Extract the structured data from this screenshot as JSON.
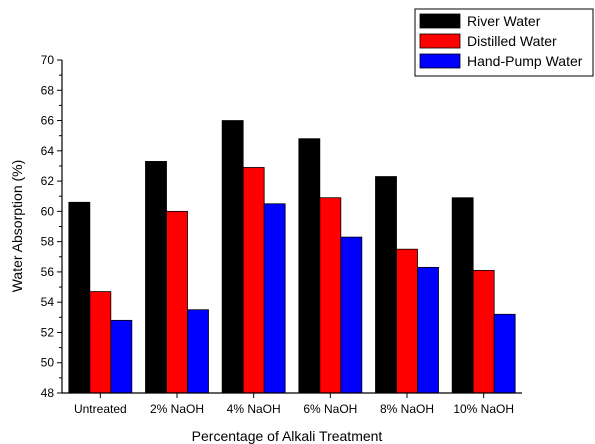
{
  "chart_data": {
    "type": "bar",
    "categories": [
      "Untreated",
      "2% NaOH",
      "4% NaOH",
      "6% NaOH",
      "8% NaOH",
      "10% NaOH"
    ],
    "series": [
      {
        "name": "River Water",
        "color": "#000000",
        "values": [
          60.6,
          63.3,
          66.0,
          64.8,
          62.3,
          60.9
        ]
      },
      {
        "name": "Distilled Water",
        "color": "#ff0000",
        "values": [
          54.7,
          60.0,
          62.9,
          60.9,
          57.5,
          56.1
        ]
      },
      {
        "name": "Hand-Pump Water",
        "color": "#0000ff",
        "values": [
          52.8,
          53.5,
          60.5,
          58.3,
          56.3,
          53.2
        ]
      }
    ],
    "xlabel": "Percentage of Alkali Treatment",
    "ylabel": "Water Absorption (%)",
    "ylim": [
      48,
      70
    ],
    "yticks": [
      48,
      50,
      52,
      54,
      56,
      58,
      60,
      62,
      64,
      66,
      68,
      70
    ],
    "grid": false,
    "legend_position": "top-right"
  }
}
